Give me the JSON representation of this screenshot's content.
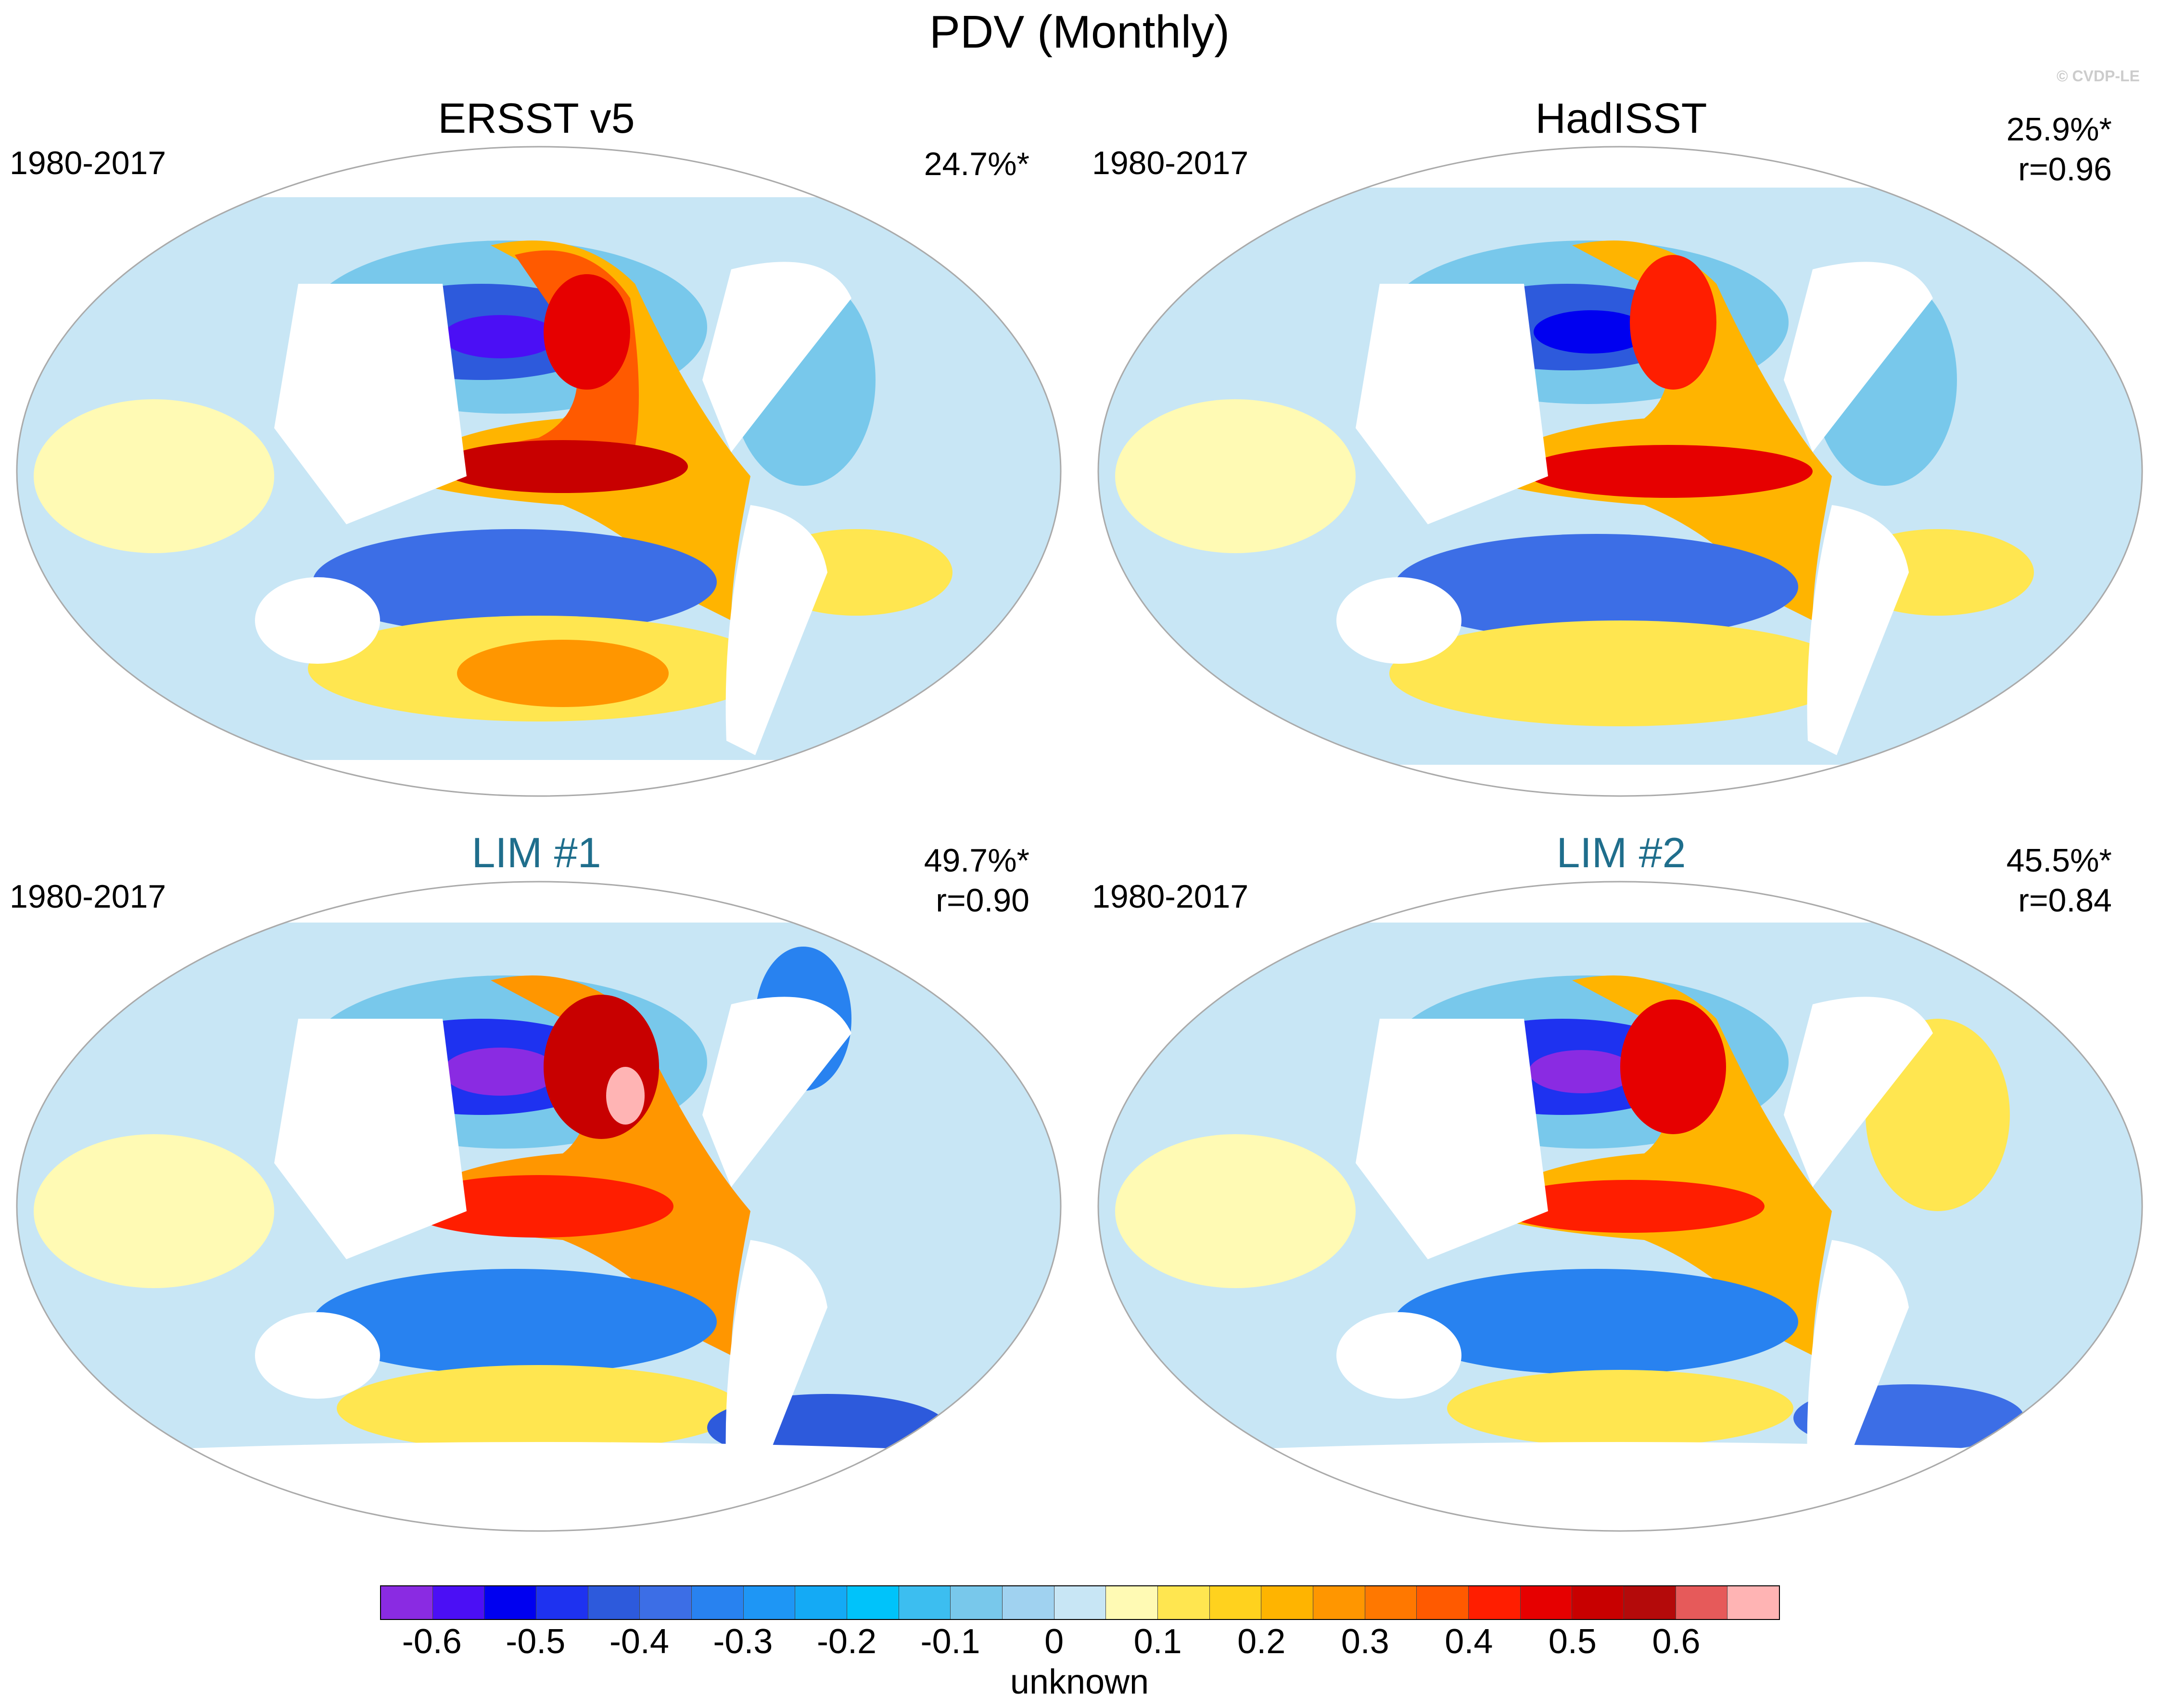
{
  "title": "PDV (Monthly)",
  "watermark": "© CVDP-LE",
  "panels": [
    {
      "title": "ERSST v5",
      "period": "1980-2017",
      "stat1": "24.7%*",
      "stat2": ""
    },
    {
      "title": "HadISST",
      "period": "1980-2017",
      "stat1": "25.9%*",
      "stat2": "r=0.96"
    },
    {
      "title": "LIM #1",
      "period": "1980-2017",
      "stat1": "49.7%*",
      "stat2": "r=0.90"
    },
    {
      "title": "LIM #2",
      "period": "1980-2017",
      "stat1": "45.5%*",
      "stat2": "r=0.84"
    }
  ],
  "colorbar": {
    "label": "unknown",
    "ticks": [
      "-0.6",
      "-0.5",
      "-0.4",
      "-0.3",
      "-0.2",
      "-0.1",
      "0",
      "0.1",
      "0.2",
      "0.3",
      "0.4",
      "0.5",
      "0.6"
    ],
    "colors": [
      "#8a2be2",
      "#4b0ff5",
      "#0000f0",
      "#1e32f0",
      "#2d5adc",
      "#3c6ee6",
      "#2882f0",
      "#1e96f5",
      "#14aaf5",
      "#00c3fa",
      "#3cbef0",
      "#78c8eb",
      "#a0d2f0",
      "#c8e6f5",
      "#fffab4",
      "#ffe650",
      "#ffd21e",
      "#ffb400",
      "#ff9600",
      "#ff7800",
      "#ff5a00",
      "#ff1e00",
      "#e60000",
      "#c80000",
      "#b40a0a",
      "#e65a5a",
      "#ffb4b4"
    ]
  }
}
